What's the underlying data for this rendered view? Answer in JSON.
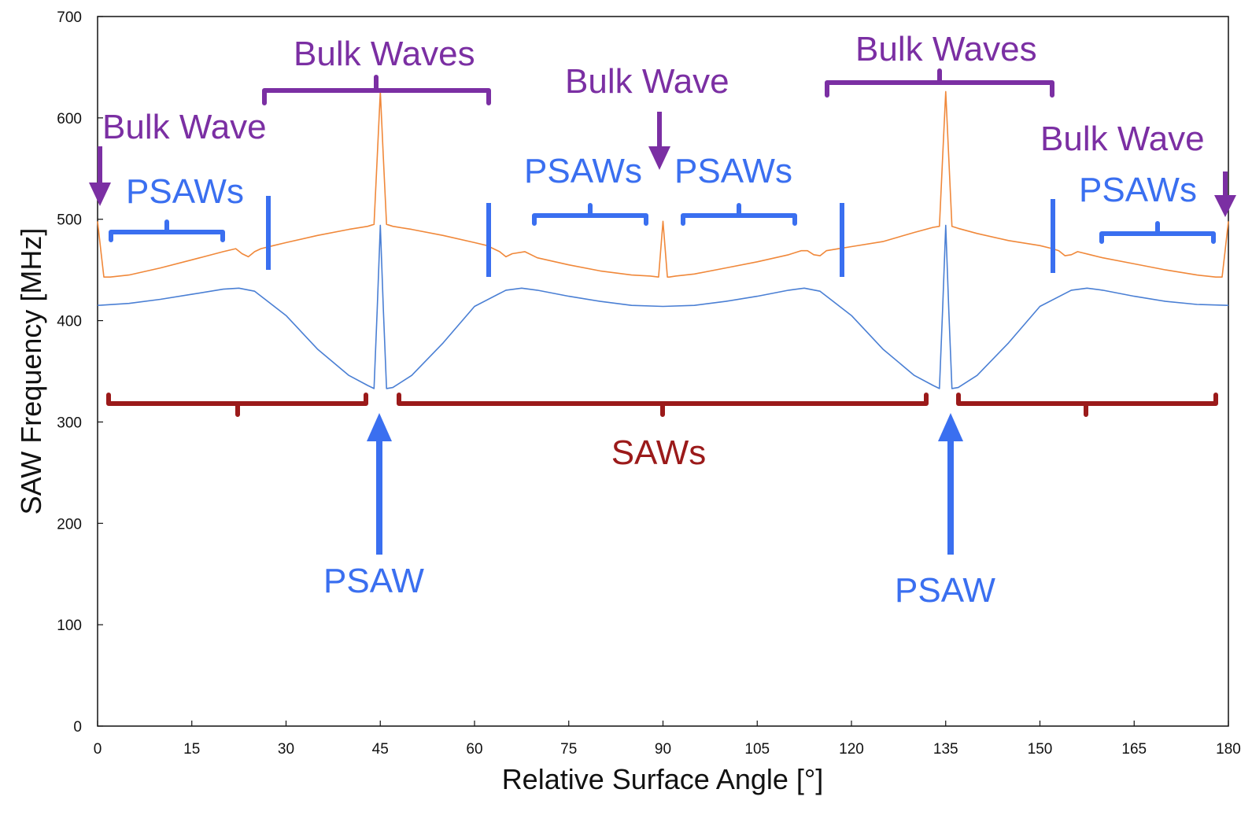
{
  "chart_data": {
    "type": "line",
    "title": "",
    "xlabel": "Relative Surface Angle [°]",
    "ylabel": "SAW Frequency [MHz]",
    "xlim": [
      0,
      180
    ],
    "ylim": [
      0,
      700
    ],
    "xticks": [
      0,
      15,
      30,
      45,
      60,
      75,
      90,
      105,
      120,
      135,
      150,
      165,
      180
    ],
    "yticks": [
      0,
      100,
      200,
      300,
      400,
      500,
      600,
      700
    ],
    "grid": false,
    "legend": "none",
    "series": [
      {
        "color": "#F0883A",
        "x": [
          0,
          0.5,
          1,
          2,
          5,
          10,
          15,
          20,
          22,
          23,
          24,
          25,
          26,
          28,
          30,
          35,
          40,
          43,
          44,
          44.5,
          45,
          45.5,
          46,
          47,
          50,
          55,
          60,
          62,
          63,
          64,
          65,
          66,
          68,
          70,
          75,
          80,
          85,
          88,
          89.3,
          90,
          90.7,
          91,
          92,
          95,
          100,
          105,
          110,
          112,
          113,
          114,
          115,
          116,
          118,
          120,
          125,
          130,
          133,
          134,
          134.5,
          135,
          135.5,
          136,
          137,
          140,
          145,
          150,
          152,
          153,
          154,
          155,
          156,
          158,
          160,
          165,
          170,
          175,
          178,
          179,
          179.5,
          180
        ],
        "y": [
          498,
          470,
          443,
          443,
          445,
          452,
          460,
          468,
          471,
          466,
          463,
          468,
          471,
          474,
          477,
          484,
          490,
          493,
          495,
          560,
          626,
          560,
          495,
          493,
          490,
          484,
          477,
          474,
          471,
          468,
          463,
          466,
          468,
          462,
          455,
          449,
          445,
          444,
          443,
          498,
          443,
          443,
          444,
          446,
          452,
          458,
          465,
          469,
          469,
          465,
          464,
          469,
          471,
          473,
          478,
          487,
          492,
          493,
          560,
          626,
          560,
          493,
          491,
          486,
          479,
          474,
          471,
          469,
          464,
          465,
          468,
          465,
          462,
          456,
          450,
          445,
          443,
          443,
          470,
          498
        ]
      },
      {
        "color": "#4A7FD4",
        "x": [
          0,
          5,
          10,
          15,
          20,
          22.5,
          25,
          30,
          35,
          40,
          43,
          44,
          44.5,
          45,
          45.5,
          46,
          47,
          50,
          55,
          60,
          65,
          67.5,
          70,
          75,
          80,
          85,
          90,
          95,
          100,
          105,
          110,
          112.5,
          115,
          120,
          125,
          130,
          133,
          134,
          134.5,
          135,
          135.5,
          136,
          137,
          140,
          145,
          150,
          155,
          157.5,
          160,
          165,
          170,
          175,
          180
        ],
        "y": [
          415,
          417,
          421,
          426,
          431,
          432,
          429,
          405,
          372,
          346,
          336,
          333,
          410,
          494,
          410,
          333,
          334,
          346,
          378,
          414,
          430,
          432,
          430,
          424,
          419,
          415,
          414,
          415,
          419,
          424,
          430,
          432,
          429,
          405,
          372,
          346,
          336,
          333,
          410,
          494,
          410,
          333,
          334,
          346,
          378,
          414,
          430,
          432,
          430,
          424,
          419,
          416,
          415
        ]
      }
    ]
  },
  "annotations": {
    "purple_color": "#7B2FA3",
    "blue_color": "#3A6FF0",
    "red_color": "#9B1A1A",
    "bulk_wave_left": "Bulk Wave",
    "bulk_waves_center_left": "Bulk Waves",
    "bulk_wave_center": "Bulk Wave",
    "bulk_waves_center_right": "Bulk Waves",
    "bulk_wave_right": "Bulk Wave",
    "psaws_1": "PSAWs",
    "psaws_2": "PSAWs",
    "psaws_3": "PSAWs",
    "psaws_4": "PSAWs",
    "saws": "SAWs",
    "psaw_left": "PSAW",
    "psaw_right": "PSAW"
  }
}
